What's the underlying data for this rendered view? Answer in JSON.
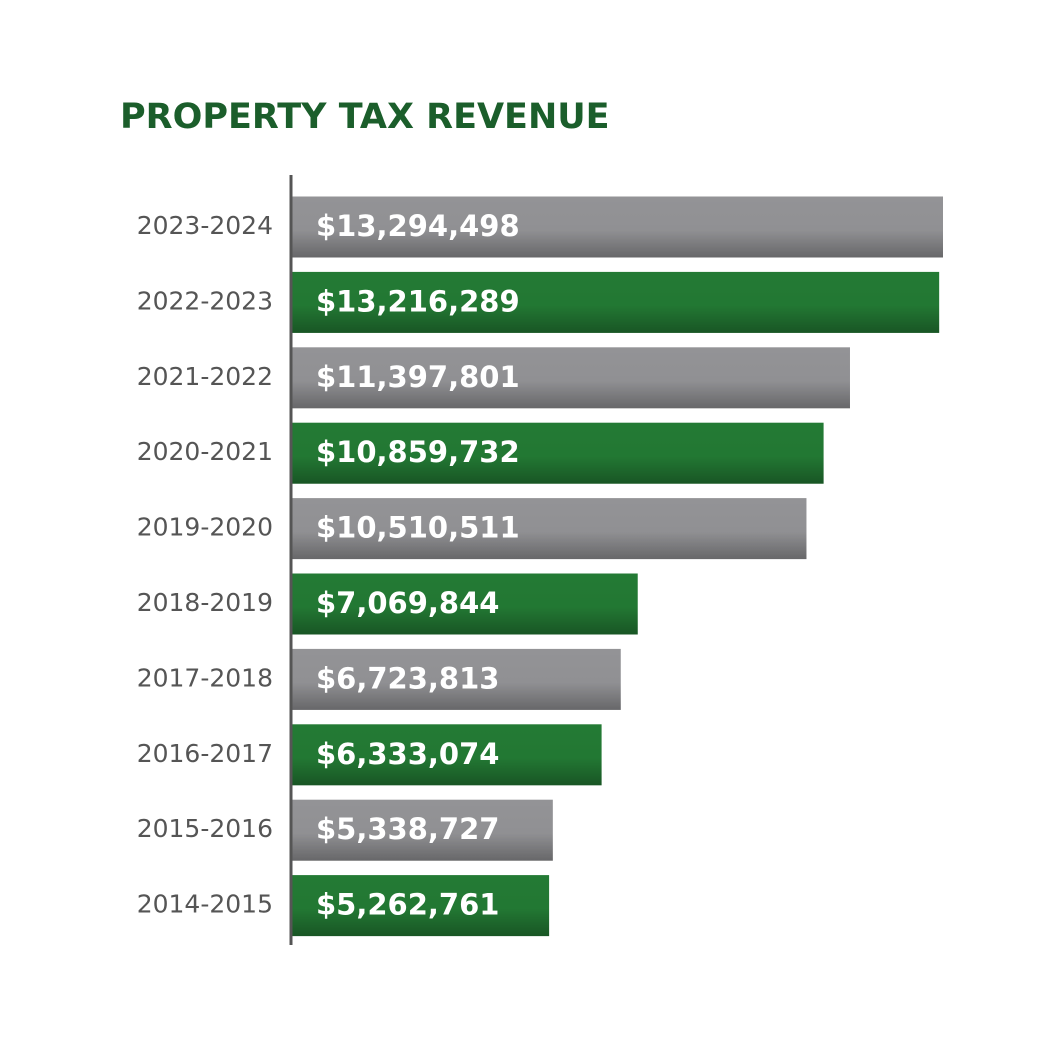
{
  "chart_data": {
    "type": "hbar",
    "title": "PROPERTY TAX REVENUE",
    "categories": [
      "2023-2024",
      "2022-2023",
      "2021-2022",
      "2020-2021",
      "2019-2020",
      "2018-2019",
      "2017-2018",
      "2016-2017",
      "2015-2016",
      "2014-2015"
    ],
    "values": [
      13294498,
      13216289,
      11397801,
      10859732,
      10510511,
      7069844,
      6723813,
      6333074,
      5338727,
      5262761
    ],
    "value_labels": [
      "$13,294,498",
      "$13,216,289",
      "$11,397,801",
      "$10,859,732",
      "$10,510,511",
      "$7,069,844",
      "$6,723,813",
      "$6,333,074",
      "$5,338,727",
      "$5,262,761"
    ],
    "colors": [
      "#939396",
      "#237a34",
      "#939396",
      "#237a34",
      "#939396",
      "#237a34",
      "#939396",
      "#237a34",
      "#939396",
      "#237a34"
    ]
  }
}
